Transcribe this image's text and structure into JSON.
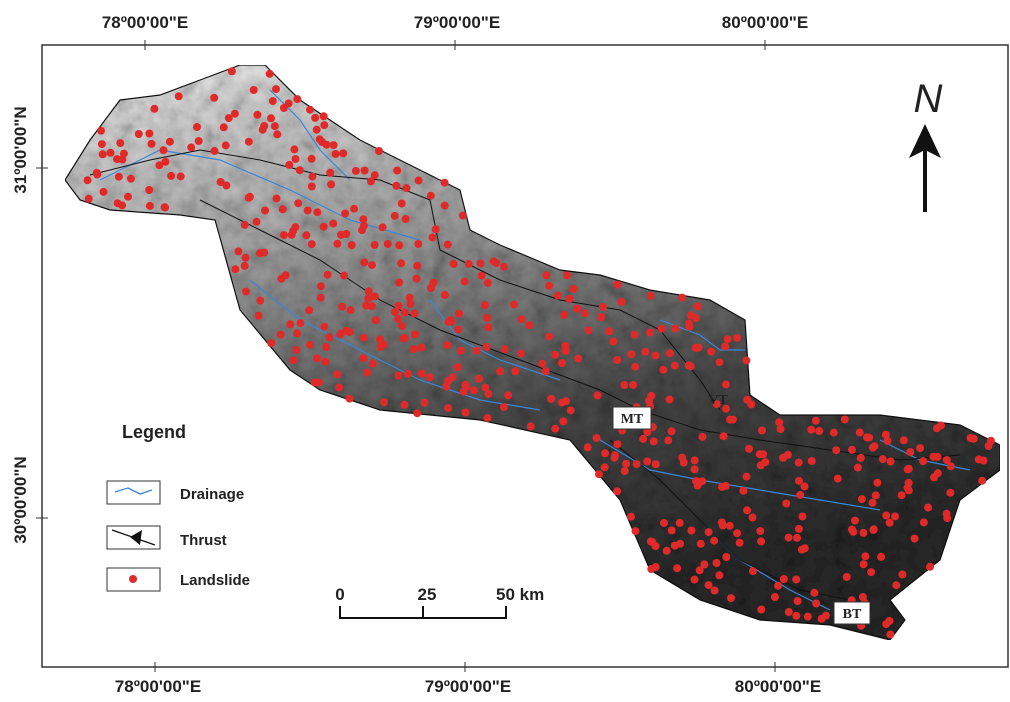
{
  "map": {
    "top_labels": [
      "78º00'00\"E",
      "79º00'00\"E",
      "80º00'00\"E"
    ],
    "bottom_labels": [
      "78º00'00\"E",
      "79º00'00\"E",
      "80º00'00\"E"
    ],
    "left_labels": [
      "31º00'00\"N",
      "30º00'00\"N"
    ],
    "north": "N",
    "legend": {
      "title": "Legend",
      "items": [
        "Drainage",
        "Thrust",
        "Landslide"
      ]
    },
    "scale": [
      "0",
      "25",
      "50 km"
    ],
    "faults": [
      "MT",
      "VT",
      "BT"
    ]
  }
}
